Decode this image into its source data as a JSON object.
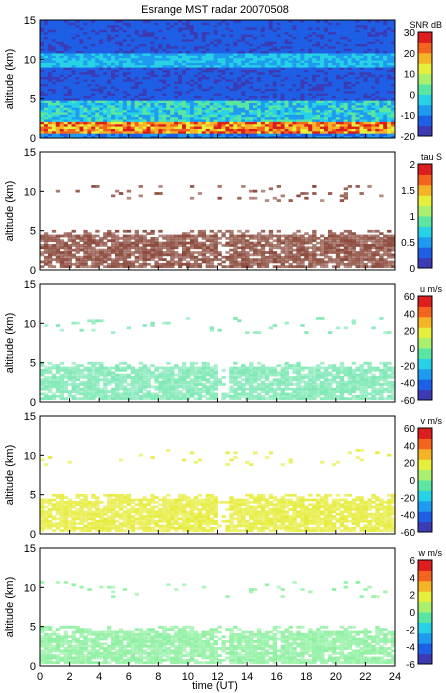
{
  "title": "Esrange MST radar 20070508",
  "xlabel": "time (UT)",
  "colorbar_colors": [
    "#3b3bb4",
    "#1e5fe6",
    "#1e9bf0",
    "#28d2e6",
    "#5ae6a0",
    "#aaf06e",
    "#e6f03c",
    "#f5b428",
    "#f5641e",
    "#dc1e1e"
  ],
  "chart_data": [
    {
      "type": "heatmap",
      "title": "Esrange MST radar 20070508",
      "xlabel": "",
      "ylabel": "altitude (km)",
      "x_ticks": [],
      "y_ticks": [
        "0",
        "5",
        "10",
        "15"
      ],
      "xlim": [
        0,
        24
      ],
      "ylim": [
        0,
        15
      ],
      "colorbar": {
        "label": "SNR dB",
        "ticks": [
          "30",
          "20",
          "10",
          "0",
          "-10",
          "-20"
        ],
        "range": [
          -20,
          30
        ]
      },
      "variable": "SNR",
      "layers": [
        {
          "alt_range": [
            0.3,
            2.0
          ],
          "level": "high"
        },
        {
          "alt_range": [
            2.0,
            4.5
          ],
          "level": "medium"
        },
        {
          "alt_range": [
            8.5,
            10.5
          ],
          "level": "medium"
        },
        {
          "alt_range": [
            4.5,
            15
          ],
          "level": "low"
        }
      ]
    },
    {
      "type": "heatmap",
      "title": "",
      "xlabel": "",
      "ylabel": "altitude (km)",
      "x_ticks": [],
      "y_ticks": [
        "0",
        "5",
        "10",
        "15"
      ],
      "xlim": [
        0,
        24
      ],
      "ylim": [
        0,
        15
      ],
      "colorbar": {
        "label": "tau S",
        "ticks": [
          "2",
          "1.5",
          "1",
          "0.5",
          "0"
        ],
        "range": [
          0,
          2
        ]
      },
      "variable": "tau",
      "dominant_color": "#8b4a3c"
    },
    {
      "type": "heatmap",
      "title": "",
      "xlabel": "",
      "ylabel": "altitude (km)",
      "x_ticks": [],
      "y_ticks": [
        "0",
        "5",
        "10",
        "15"
      ],
      "xlim": [
        0,
        24
      ],
      "ylim": [
        0,
        15
      ],
      "colorbar": {
        "label": "u m/s",
        "ticks": [
          "60",
          "40",
          "20",
          "0",
          "-20",
          "-40",
          "-60"
        ],
        "range": [
          -60,
          60
        ]
      },
      "variable": "u",
      "dominant_color": "#7ee8b4"
    },
    {
      "type": "heatmap",
      "title": "",
      "xlabel": "",
      "ylabel": "altitude (km)",
      "x_ticks": [],
      "y_ticks": [
        "0",
        "5",
        "10",
        "15"
      ],
      "xlim": [
        0,
        24
      ],
      "ylim": [
        0,
        15
      ],
      "colorbar": {
        "label": "v m/s",
        "ticks": [
          "60",
          "40",
          "20",
          "0",
          "-20",
          "-40",
          "-60"
        ],
        "range": [
          -60,
          60
        ]
      },
      "variable": "v",
      "dominant_color": "#e6ec3c"
    },
    {
      "type": "heatmap",
      "title": "",
      "xlabel": "time (UT)",
      "ylabel": "altitude (km)",
      "x_ticks": [
        "0",
        "2",
        "4",
        "6",
        "8",
        "10",
        "12",
        "14",
        "16",
        "18",
        "20",
        "22",
        "24"
      ],
      "y_ticks": [
        "0",
        "5",
        "10",
        "15"
      ],
      "xlim": [
        0,
        24
      ],
      "ylim": [
        0,
        15
      ],
      "colorbar": {
        "label": "w m/s",
        "ticks": [
          "6",
          "4",
          "2",
          "0",
          "-2",
          "-4",
          "-6"
        ],
        "range": [
          -6,
          6
        ]
      },
      "variable": "w",
      "dominant_color": "#8ef0a0"
    }
  ]
}
